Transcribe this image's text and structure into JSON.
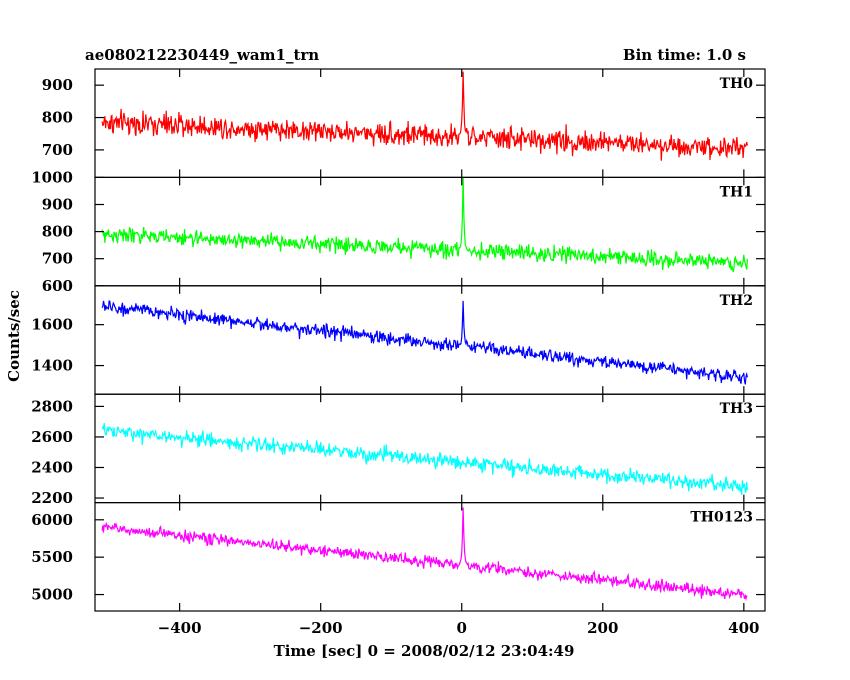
{
  "header": {
    "left_title": "ae080212230449_wam1_trn",
    "right_title": "Bin time: 1.0 s"
  },
  "chart_data": {
    "type": "line",
    "title": "ae080212230449_wam1_trn",
    "subtitle": "Bin time: 1.0 s",
    "xlabel": "Time [sec] 0 = 2008/02/12 23:04:49",
    "ylabel": "Counts/sec",
    "xlim": [
      -520,
      430
    ],
    "x_ticks": [
      -400,
      -200,
      0,
      200,
      400
    ],
    "x_tick_labels": [
      "−400",
      "−200",
      "0",
      "200",
      "400"
    ],
    "x_start": -510,
    "x_end": 405,
    "bin_time": 1.0,
    "grid": false,
    "panels": [
      {
        "label": "TH0",
        "color": "#ff0000",
        "ylim": [
          615,
          950
        ],
        "yticks": [
          700,
          800,
          900
        ],
        "trend_start": 785,
        "trend_end": 705,
        "noise_sd": 35,
        "spike": {
          "x": 2,
          "peak": 950
        }
      },
      {
        "label": "TH1",
        "color": "#00ff00",
        "ylim": [
          600,
          1000
        ],
        "yticks": [
          600,
          700,
          800,
          900,
          1000
        ],
        "trend_start": 790,
        "trend_end": 685,
        "noise_sd": 28,
        "spike": {
          "x": 2,
          "peak": 1000
        }
      },
      {
        "label": "TH2",
        "color": "#0000ff",
        "ylim": [
          1260,
          1790
        ],
        "yticks": [
          1400,
          1600
        ],
        "trend_start": 1690,
        "trend_end": 1340,
        "noise_sd": 32,
        "spike": {
          "x": 2,
          "peak": 1720
        }
      },
      {
        "label": "TH3",
        "color": "#00ffff",
        "ylim": [
          2170,
          2880
        ],
        "yticks": [
          2200,
          2400,
          2600,
          2800
        ],
        "trend_start": 2640,
        "trend_end": 2270,
        "noise_sd": 48,
        "spike": null
      },
      {
        "label": "TH0123",
        "color": "#ff00ff",
        "ylim": [
          4780,
          6230
        ],
        "yticks": [
          5000,
          5500,
          6000
        ],
        "trend_start": 5900,
        "trend_end": 4990,
        "noise_sd": 75,
        "spike": {
          "x": 2,
          "peak": 6180
        }
      }
    ]
  }
}
